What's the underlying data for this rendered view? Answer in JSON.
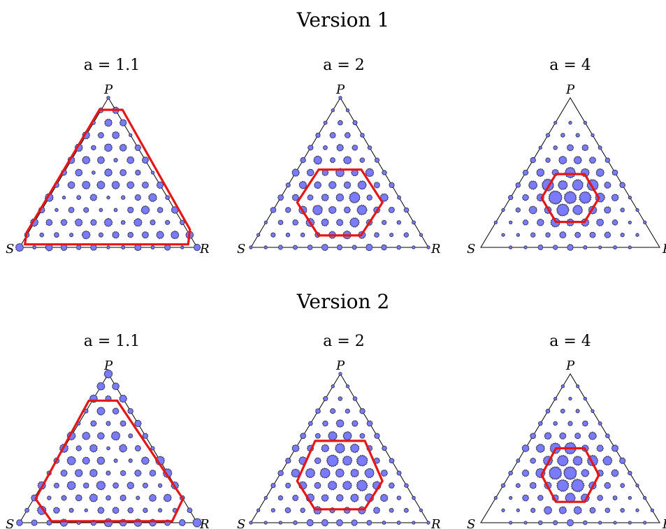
{
  "sections": [
    {
      "title": "Version 1",
      "panels": [
        {
          "label": "a = 1.1",
          "vertices": {
            "top": "P",
            "left": "S",
            "right": "R"
          },
          "polygon": [
            [
              0.03,
              0.02
            ],
            [
              0.95,
              0.02
            ],
            [
              0.96,
              0.12
            ],
            [
              0.58,
              0.92
            ],
            [
              0.45,
              0.92
            ],
            [
              0.04,
              0.1
            ]
          ],
          "dots": {
            "n": 12,
            "size": 0.55,
            "center_bias": 0.0,
            "seed": 3
          }
        },
        {
          "label": "a = 2",
          "vertices": {
            "top": "P",
            "left": "S",
            "right": "R"
          },
          "polygon": [
            [
              0.38,
              0.08
            ],
            [
              0.62,
              0.08
            ],
            [
              0.74,
              0.3
            ],
            [
              0.62,
              0.52
            ],
            [
              0.38,
              0.52
            ],
            [
              0.26,
              0.3
            ]
          ],
          "dots": {
            "n": 12,
            "size": 0.75,
            "center_bias": 1.6,
            "seed": 7
          }
        },
        {
          "label": "a = 4",
          "vertices": {
            "top": "P",
            "left": "S",
            "right": "R"
          },
          "polygon": [
            [
              0.42,
              0.17
            ],
            [
              0.58,
              0.17
            ],
            [
              0.66,
              0.33
            ],
            [
              0.58,
              0.49
            ],
            [
              0.42,
              0.49
            ],
            [
              0.34,
              0.33
            ]
          ],
          "dots": {
            "n": 12,
            "size": 0.95,
            "center_bias": 3.2,
            "seed": 11
          }
        }
      ]
    },
    {
      "title": "Version 2",
      "panels": [
        {
          "label": "a = 1.1",
          "vertices": {
            "top": "P",
            "left": "S",
            "right": "R"
          },
          "polygon": [
            [
              0.18,
              0.01
            ],
            [
              0.86,
              0.01
            ],
            [
              0.92,
              0.16
            ],
            [
              0.55,
              0.82
            ],
            [
              0.39,
              0.82
            ],
            [
              0.09,
              0.16
            ]
          ],
          "dots": {
            "n": 12,
            "size": 0.6,
            "center_bias": 0.3,
            "seed": 5
          }
        },
        {
          "label": "a = 2",
          "vertices": {
            "top": "P",
            "left": "S",
            "right": "R"
          },
          "polygon": [
            [
              0.36,
              0.09
            ],
            [
              0.64,
              0.09
            ],
            [
              0.74,
              0.28
            ],
            [
              0.64,
              0.55
            ],
            [
              0.36,
              0.55
            ],
            [
              0.26,
              0.28
            ]
          ],
          "dots": {
            "n": 12,
            "size": 0.8,
            "center_bias": 1.8,
            "seed": 13
          }
        },
        {
          "label": "a = 4",
          "vertices": {
            "top": "P",
            "left": "S",
            "right": "R"
          },
          "polygon": [
            [
              0.42,
              0.14
            ],
            [
              0.58,
              0.14
            ],
            [
              0.66,
              0.32
            ],
            [
              0.58,
              0.5
            ],
            [
              0.42,
              0.5
            ],
            [
              0.34,
              0.32
            ]
          ],
          "dots": {
            "n": 12,
            "size": 0.95,
            "center_bias": 3.0,
            "seed": 17
          }
        }
      ]
    }
  ],
  "colors": {
    "dot_fill": "#7b7bff",
    "dot_stroke": "#3a3a5a",
    "polygon": "#e51616",
    "triangle": "#000000"
  }
}
